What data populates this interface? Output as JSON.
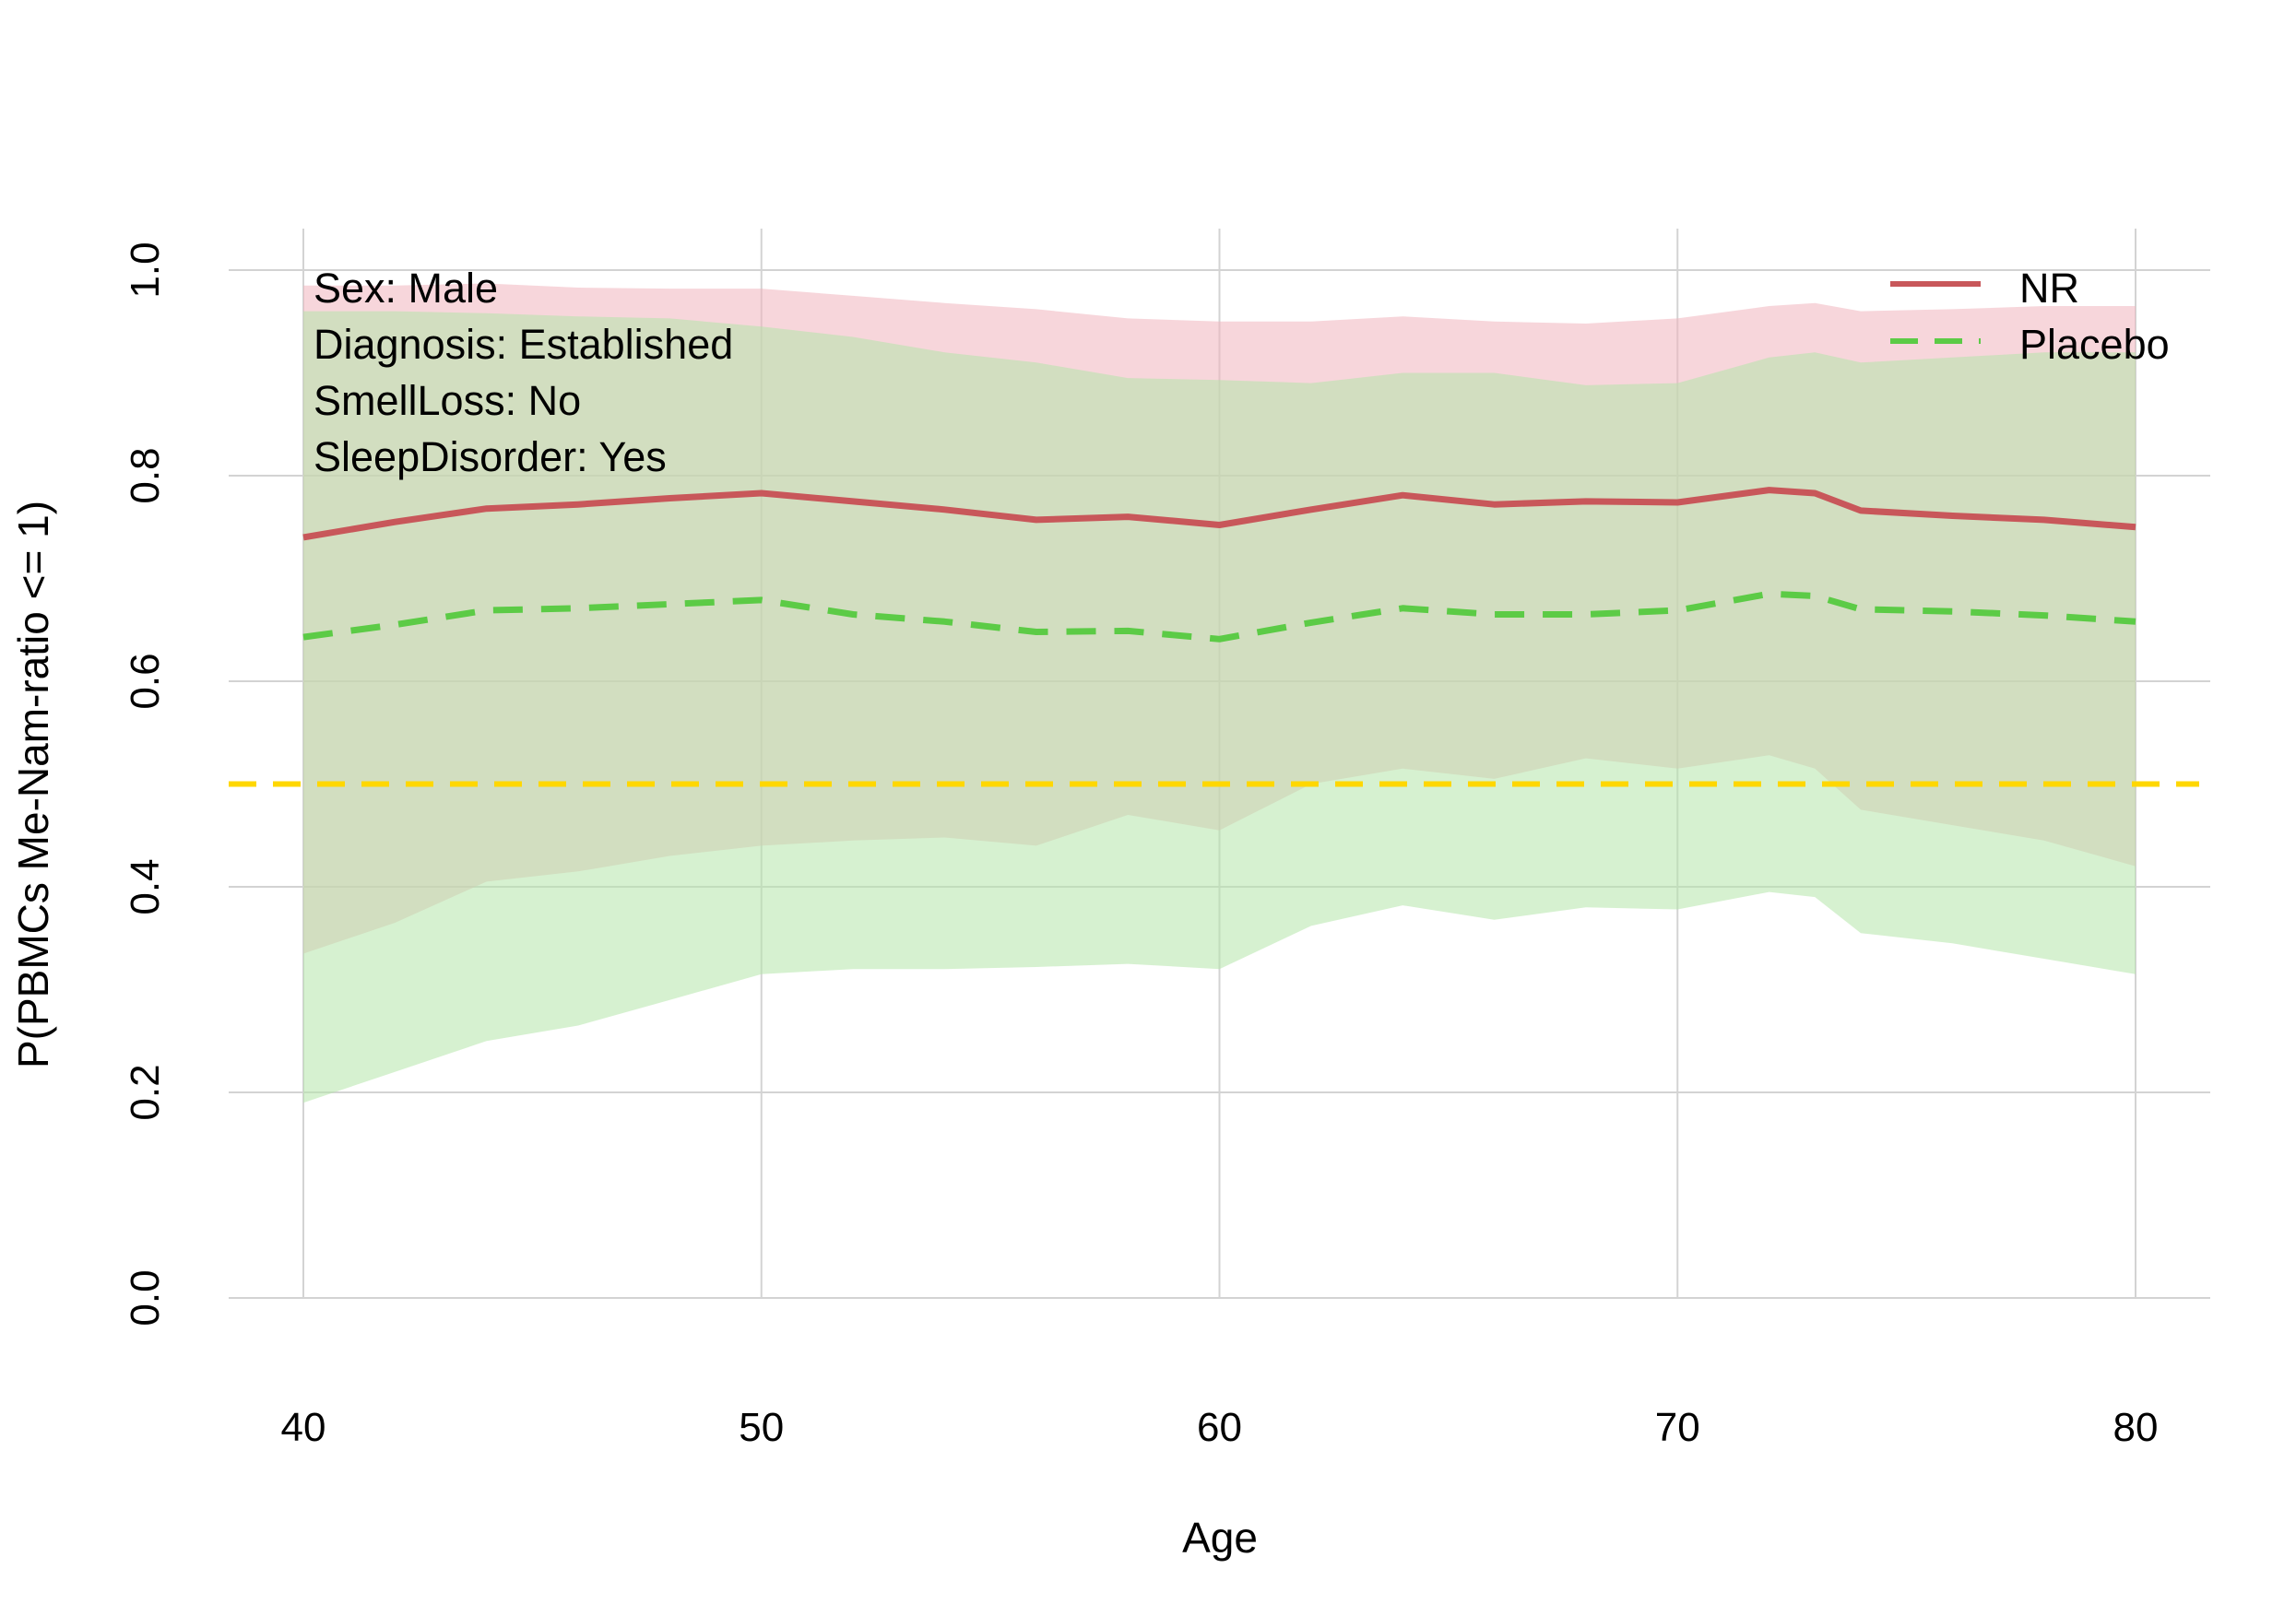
{
  "chart_data": {
    "type": "line",
    "title": "",
    "xlabel": "Age",
    "ylabel": "P(PBMCs Me-Nam-ratio <= 1)",
    "xlim": [
      40,
      80
    ],
    "ylim": [
      0,
      1
    ],
    "xticks": [
      40,
      50,
      60,
      70,
      80
    ],
    "yticks": [
      0.0,
      0.2,
      0.4,
      0.6,
      0.8,
      1.0
    ],
    "ytick_labels": [
      "0.0",
      "0.2",
      "0.4",
      "0.6",
      "0.8",
      "1.0"
    ],
    "grid": true,
    "legend_position": "top-right",
    "annotations": [
      "Sex: Male",
      "Diagnosis: Established",
      "SmellLoss: No",
      "SleepDisorder: Yes"
    ],
    "reference_line": {
      "y": 0.5,
      "style": "dashed",
      "color": "#FFD700"
    },
    "x": [
      40,
      42,
      44,
      46,
      48,
      50,
      52,
      54,
      56,
      58,
      60,
      62,
      64,
      66,
      68,
      70,
      72,
      73,
      74,
      76,
      78,
      80
    ],
    "series": [
      {
        "name": "NR",
        "color": "#C8575A",
        "band_color": "#F0B4BE",
        "style": "solid",
        "values": [
          0.74,
          0.755,
          0.768,
          0.772,
          0.778,
          0.783,
          0.775,
          0.767,
          0.757,
          0.76,
          0.752,
          0.767,
          0.781,
          0.772,
          0.775,
          0.774,
          0.786,
          0.783,
          0.766,
          0.761,
          0.757,
          0.75
        ],
        "lower": [
          0.335,
          0.365,
          0.405,
          0.415,
          0.43,
          0.44,
          0.445,
          0.448,
          0.44,
          0.47,
          0.455,
          0.5,
          0.515,
          0.505,
          0.525,
          0.515,
          0.528,
          0.515,
          0.475,
          0.46,
          0.445,
          0.42
        ],
        "upper": [
          0.985,
          0.985,
          0.987,
          0.983,
          0.982,
          0.982,
          0.975,
          0.968,
          0.962,
          0.953,
          0.95,
          0.95,
          0.955,
          0.95,
          0.948,
          0.953,
          0.965,
          0.968,
          0.96,
          0.962,
          0.965,
          0.965
        ]
      },
      {
        "name": "Placebo",
        "color": "#5CCB46",
        "band_color": "#B4E6AA",
        "style": "dashed",
        "values": [
          0.643,
          0.655,
          0.669,
          0.671,
          0.675,
          0.679,
          0.665,
          0.658,
          0.648,
          0.649,
          0.641,
          0.657,
          0.671,
          0.665,
          0.665,
          0.669,
          0.685,
          0.683,
          0.67,
          0.668,
          0.664,
          0.658
        ],
        "lower": [
          0.19,
          0.22,
          0.25,
          0.265,
          0.29,
          0.315,
          0.32,
          0.32,
          0.322,
          0.325,
          0.32,
          0.362,
          0.382,
          0.368,
          0.38,
          0.378,
          0.395,
          0.39,
          0.355,
          0.345,
          0.33,
          0.315
        ],
        "upper": [
          0.96,
          0.96,
          0.958,
          0.955,
          0.953,
          0.945,
          0.935,
          0.92,
          0.91,
          0.895,
          0.893,
          0.89,
          0.9,
          0.9,
          0.888,
          0.89,
          0.915,
          0.92,
          0.91,
          0.915,
          0.92,
          0.92
        ]
      }
    ]
  }
}
